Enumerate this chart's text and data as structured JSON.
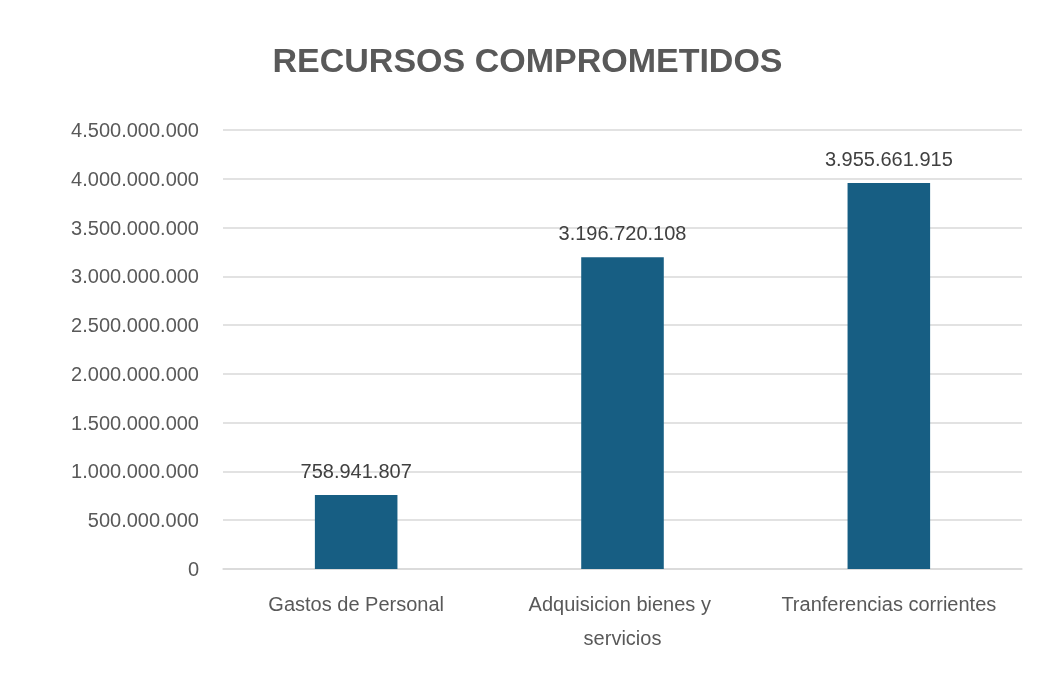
{
  "chart_data": {
    "type": "bar",
    "title": "RECURSOS COMPROMETIDOS",
    "categories": [
      "Gastos de Personal",
      "Adquisicion bienes y servicios",
      "Tranferencias corrientes"
    ],
    "values": [
      758941807,
      3196720108,
      3955661915
    ],
    "value_labels": [
      "758.941.807",
      "3.196.720.108",
      "3.955.661.915"
    ],
    "color": "#175e83",
    "ylim": [
      0,
      4500000000
    ],
    "yticks": [
      0,
      {
        "value": 500000000,
        "label": "500.000.000"
      },
      {
        "value": 1000000000,
        "label": "1.000.000.000"
      },
      {
        "value": 1500000000,
        "label": "1.500.000.000"
      },
      {
        "value": 2000000000,
        "label": "2.000.000.000"
      },
      {
        "value": 2500000000,
        "label": "2.500.000.000"
      },
      {
        "value": 3000000000,
        "label": "3.000.000.000"
      },
      {
        "value": 3500000000,
        "label": "3.500.000.000"
      },
      {
        "value": 4000000000,
        "label": "4.000.000.000"
      },
      {
        "value": 4500000000,
        "label": "4.500.000.000"
      }
    ],
    "grid": "y"
  }
}
